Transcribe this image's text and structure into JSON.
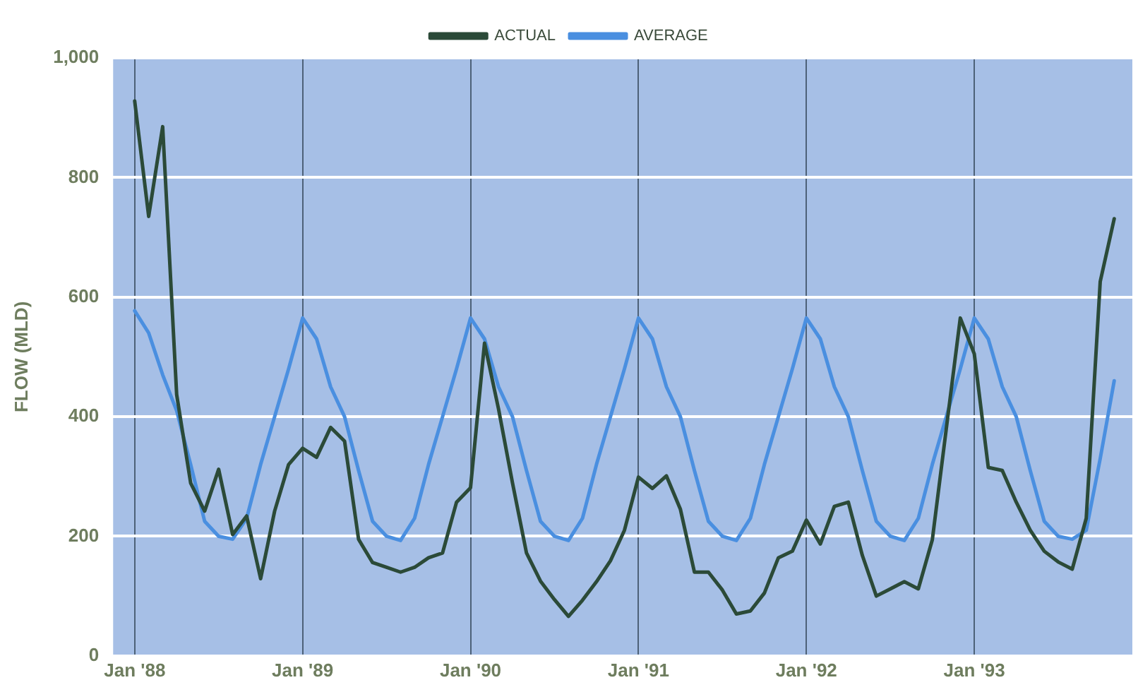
{
  "chart_data": {
    "type": "line",
    "ylabel": "FLOW (MLD)",
    "legend": "top",
    "grid": true,
    "marker": "none",
    "line_style": "solid",
    "x": [
      "1988-01",
      "1988-02",
      "1988-03",
      "1988-04",
      "1988-05",
      "1988-06",
      "1988-07",
      "1988-08",
      "1988-09",
      "1988-10",
      "1988-11",
      "1988-12",
      "1989-01",
      "1989-02",
      "1989-03",
      "1989-04",
      "1989-05",
      "1989-06",
      "1989-07",
      "1989-08",
      "1989-09",
      "1989-10",
      "1989-11",
      "1989-12",
      "1990-01",
      "1990-02",
      "1990-03",
      "1990-04",
      "1990-05",
      "1990-06",
      "1990-07",
      "1990-08",
      "1990-09",
      "1990-10",
      "1990-11",
      "1990-12",
      "1991-01",
      "1991-02",
      "1991-03",
      "1991-04",
      "1991-05",
      "1991-06",
      "1991-07",
      "1991-08",
      "1991-09",
      "1991-10",
      "1991-11",
      "1991-12",
      "1992-01",
      "1992-02",
      "1992-03",
      "1992-04",
      "1992-05",
      "1992-06",
      "1992-07",
      "1992-08",
      "1992-09",
      "1992-10",
      "1992-11",
      "1992-12",
      "1993-01",
      "1993-02",
      "1993-03",
      "1993-04",
      "1993-05",
      "1993-06",
      "1993-07",
      "1993-08",
      "1993-09",
      "1993-10",
      "1993-11"
    ],
    "series": [
      {
        "name": "ACTUAL",
        "color": "#2b4a38",
        "values": [
          928,
          735,
          885,
          437,
          289,
          242,
          312,
          203,
          234,
          129,
          242,
          320,
          347,
          332,
          382,
          359,
          195,
          156,
          148,
          140,
          148,
          164,
          172,
          257,
          281,
          523,
          413,
          289,
          172,
          125,
          94,
          66,
          93,
          124,
          159,
          210,
          299,
          280,
          301,
          245,
          140,
          140,
          110,
          70,
          75,
          105,
          164,
          175,
          227,
          187,
          250,
          257,
          168,
          100,
          112,
          124,
          112,
          194,
          380,
          565,
          505,
          315,
          310,
          257,
          210,
          175,
          157,
          145,
          230,
          626,
          731
        ]
      },
      {
        "name": "AVERAGE",
        "color": "#4a8fe0",
        "values": [
          577,
          540,
          470,
          410,
          320,
          225,
          200,
          195,
          230,
          320,
          400,
          480,
          565,
          530,
          450,
          400,
          310,
          225,
          200,
          193,
          230,
          320,
          400,
          480,
          565,
          530,
          450,
          400,
          310,
          225,
          200,
          193,
          230,
          320,
          400,
          480,
          565,
          530,
          450,
          400,
          310,
          225,
          200,
          193,
          230,
          320,
          400,
          480,
          565,
          530,
          450,
          400,
          310,
          225,
          200,
          193,
          230,
          320,
          400,
          480,
          565,
          530,
          450,
          400,
          310,
          225,
          200,
          195,
          210,
          330,
          460
        ]
      }
    ],
    "xlim": [
      "1987-11-15",
      "1993-12-10"
    ],
    "xticks": [
      {
        "value": "1988-01",
        "label": "Jan '88"
      },
      {
        "value": "1989-01",
        "label": "Jan '89"
      },
      {
        "value": "1990-01",
        "label": "Jan '90"
      },
      {
        "value": "1991-01",
        "label": "Jan '91"
      },
      {
        "value": "1992-01",
        "label": "Jan '92"
      },
      {
        "value": "1993-01",
        "label": "Jan '93"
      }
    ],
    "ylim": [
      0,
      1000
    ],
    "yticks": [
      0,
      200,
      400,
      600,
      800,
      {
        "value": 1000,
        "label": "1,000"
      }
    ]
  }
}
